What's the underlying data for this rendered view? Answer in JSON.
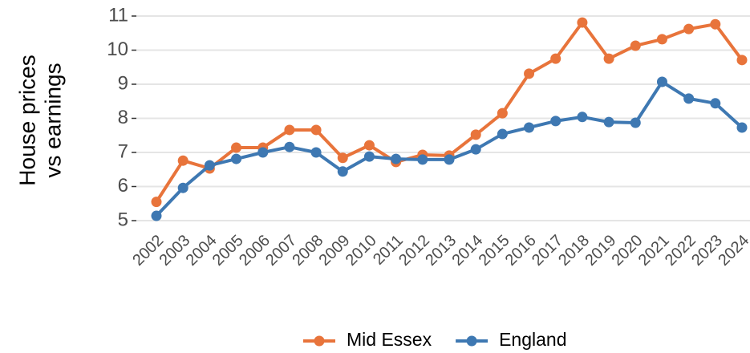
{
  "chart_data": {
    "type": "line",
    "ylabel": [
      "House prices",
      "vs earnings"
    ],
    "categories": [
      "2002",
      "2003",
      "2004",
      "2005",
      "2006",
      "2007",
      "2008",
      "2009",
      "2010",
      "2011",
      "2012",
      "2013",
      "2014",
      "2015",
      "2016",
      "2017",
      "2018",
      "2019",
      "2020",
      "2021",
      "2022",
      "2023",
      "2024"
    ],
    "series": [
      {
        "name": "Mid Essex",
        "color": "#e8743b",
        "values": [
          5.55,
          6.76,
          6.53,
          7.14,
          7.14,
          7.66,
          7.66,
          6.84,
          7.21,
          6.72,
          6.93,
          6.91,
          7.52,
          8.15,
          9.31,
          9.75,
          10.81,
          9.75,
          10.13,
          10.32,
          10.62,
          10.76,
          9.71
        ]
      },
      {
        "name": "England",
        "color": "#3e78b2",
        "values": [
          5.14,
          5.96,
          6.62,
          6.81,
          7.0,
          7.16,
          7.0,
          6.44,
          6.88,
          6.81,
          6.79,
          6.79,
          7.09,
          7.54,
          7.73,
          7.92,
          8.04,
          7.89,
          7.87,
          9.07,
          8.58,
          8.44,
          7.73
        ]
      }
    ],
    "ylim": [
      5,
      11
    ],
    "yticks": [
      5,
      6,
      7,
      8,
      9,
      10,
      11
    ],
    "grid": true,
    "legend": "bottom"
  }
}
